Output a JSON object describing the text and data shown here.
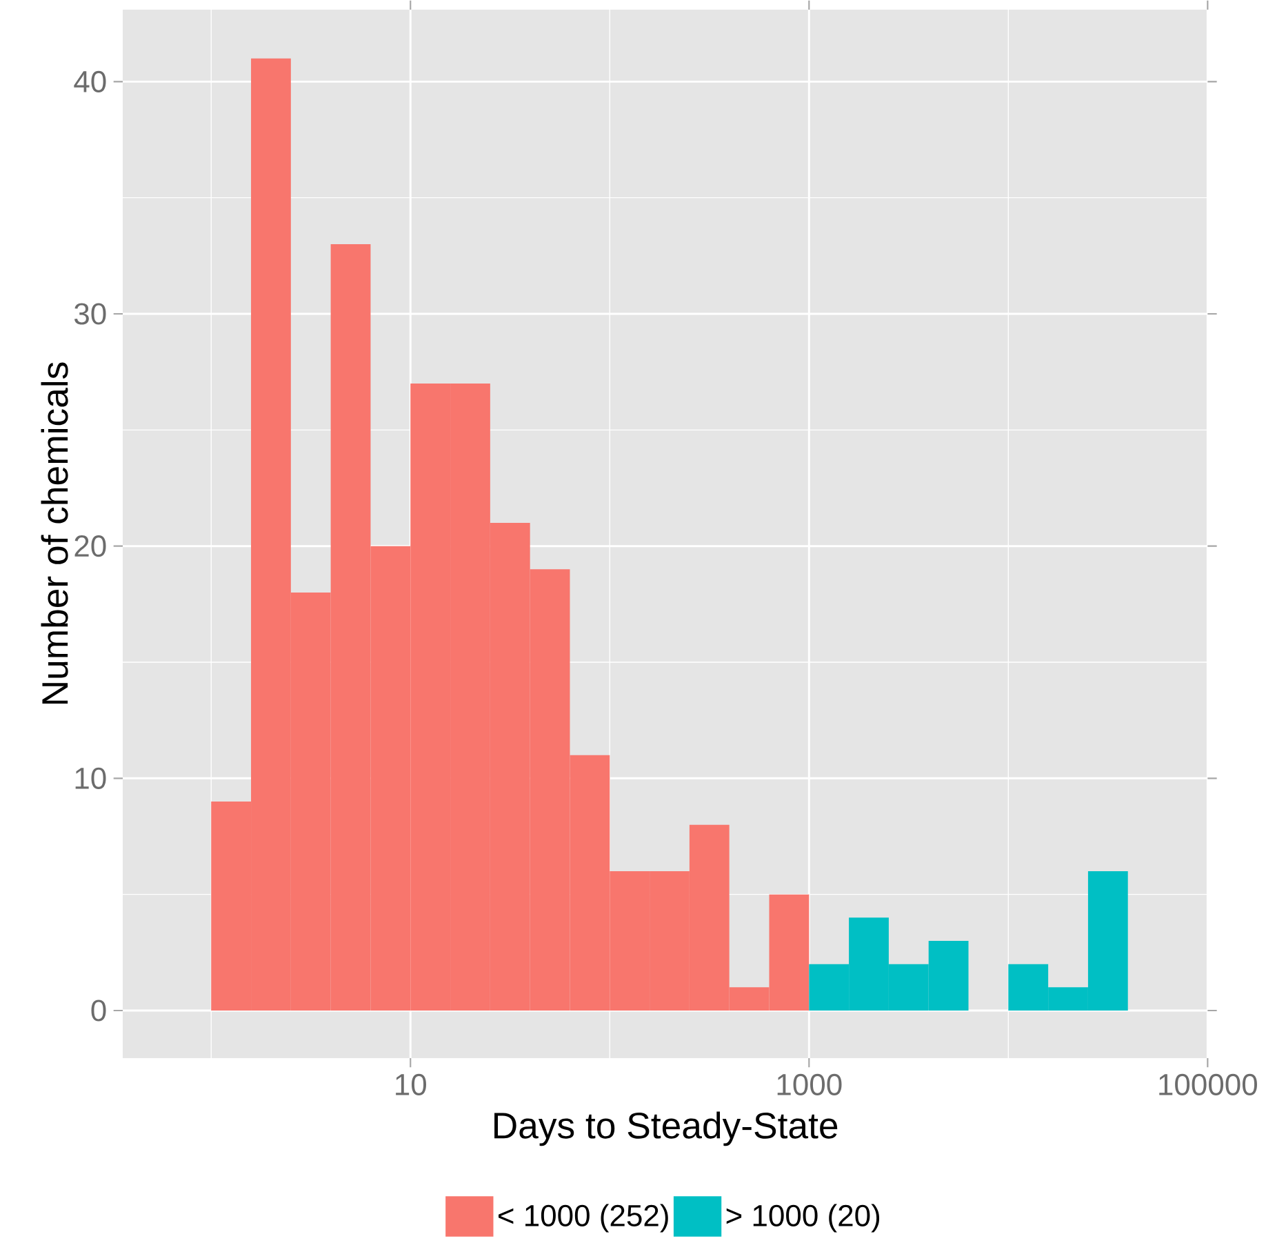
{
  "chart_data": {
    "type": "histogram",
    "xlabel": "Days to Steady-State",
    "ylabel": "Number of chemicals",
    "bins": [
      1,
      1.585,
      2.512,
      3.981,
      6.31,
      10,
      15.85,
      25.12,
      39.81,
      63.1,
      100,
      158.5,
      251.2,
      398.1,
      631,
      1000,
      1585,
      2512,
      3981,
      6310,
      10000,
      15850,
      25120,
      39810
    ],
    "series": [
      {
        "name": "< 1000 (252)",
        "color": "#f8766d",
        "values": [
          9,
          41,
          18,
          33,
          20,
          27,
          27,
          21,
          19,
          11,
          6,
          6,
          8,
          1,
          5,
          null,
          null,
          null,
          null,
          null,
          null,
          null,
          null
        ]
      },
      {
        "name": "> 1000 (20)",
        "color": "#00bfc4",
        "values": [
          null,
          null,
          null,
          null,
          null,
          null,
          null,
          null,
          null,
          null,
          null,
          null,
          null,
          null,
          null,
          2,
          4,
          2,
          3,
          0,
          2,
          1,
          6
        ]
      }
    ],
    "log": "x",
    "xlim": [
      0.36,
      100000
    ],
    "ylim": [
      -2.05,
      43.1
    ],
    "xticks": [
      {
        "value": 1,
        "label": null
      },
      {
        "value": 10,
        "label": "10"
      },
      {
        "value": 100,
        "label": null
      },
      {
        "value": 1000,
        "label": "1000"
      },
      {
        "value": 10000,
        "label": null
      },
      {
        "value": 100000,
        "label": "100000"
      }
    ],
    "yticks": [
      0,
      {
        "value": 5,
        "label": null
      },
      10,
      {
        "value": 15,
        "label": null
      },
      20,
      {
        "value": 25,
        "label": null
      },
      30,
      {
        "value": 35,
        "label": null
      },
      40
    ],
    "grid": true,
    "legend": "bottom"
  }
}
